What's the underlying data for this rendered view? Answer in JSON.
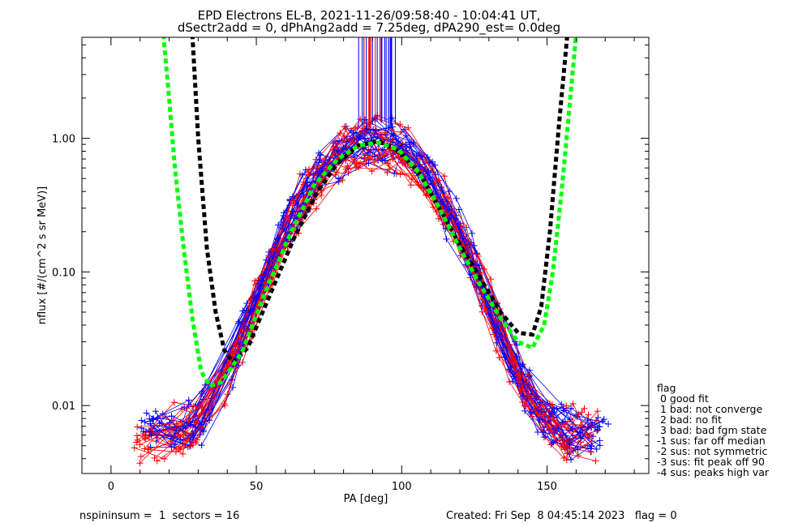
{
  "header": {
    "title_line1": "EPD Electrons EL-B, 2021-11-26/09:58:40 - 10:04:41 UT,",
    "title_line2": "dSectr2add = 0, dPhAng2add = 7.25deg, dPA290_est=   0.0deg"
  },
  "footer": {
    "left": "nspininsum =  1  sectors = 16",
    "right": "Created: Fri Sep  8 04:45:14 2023   flag = 0"
  },
  "legend": {
    "title": "flag",
    "items": [
      " 0 good fit",
      " 1 bad: not converge",
      " 2 bad: no fit",
      " 3 bad: bad fgm state",
      "-1 sus: far off median",
      "-2 sus: not symmetric",
      "-3 sus: fit peak off 90",
      "-4 sus: peaks high var"
    ]
  },
  "chart_data": {
    "type": "line",
    "xlabel": "PA [deg]",
    "ylabel": "nflux [#/(cm^2 s sr MeV)]",
    "xlim": [
      -10,
      185
    ],
    "ylim": [
      0.0031,
      5.7
    ],
    "yscale": "log",
    "x_ticks": [
      0,
      50,
      100,
      150
    ],
    "x_tick_labels": [
      "0",
      "50",
      "100",
      "150"
    ],
    "y_ticks": [
      0.01,
      0.1,
      1.0
    ],
    "y_tick_labels": [
      "0.01",
      "0.10",
      "1.00"
    ],
    "colors": {
      "red_series": "#ff0000",
      "blue_series": "#0000ff",
      "black_dashed": "#000000",
      "green_dashed": "#00ff00"
    },
    "series": [
      {
        "color": "#000000",
        "style": "dashed",
        "x": [
          28,
          30,
          33,
          36,
          39,
          42,
          47,
          55,
          63,
          71,
          78,
          85,
          92,
          99,
          106,
          113,
          120,
          127,
          134,
          140,
          145,
          148,
          151,
          154,
          157
        ],
        "y": [
          6.0,
          1.0,
          0.15,
          0.05,
          0.026,
          0.021,
          0.027,
          0.07,
          0.18,
          0.4,
          0.65,
          0.88,
          0.95,
          0.8,
          0.55,
          0.3,
          0.16,
          0.09,
          0.05,
          0.035,
          0.034,
          0.055,
          0.2,
          1.2,
          6.0
        ]
      },
      {
        "color": "#00ff00",
        "style": "dashed",
        "x": [
          18,
          20,
          22,
          25,
          28,
          31,
          34,
          38,
          45,
          53,
          62,
          70,
          78,
          85,
          92,
          99,
          106,
          113,
          120,
          127,
          134,
          140,
          145,
          149,
          152,
          155,
          158,
          160
        ],
        "y": [
          6.0,
          2.0,
          0.6,
          0.15,
          0.045,
          0.018,
          0.014,
          0.015,
          0.025,
          0.07,
          0.2,
          0.45,
          0.7,
          0.88,
          0.93,
          0.82,
          0.55,
          0.3,
          0.15,
          0.08,
          0.045,
          0.03,
          0.027,
          0.04,
          0.1,
          0.4,
          2.0,
          6.0
        ]
      }
    ],
    "scatter_overlay": "red (+) and blue (+) individual pitch-angle distributions, one polyline per spin; vertical lines near PA=90 mark fitted peak positions"
  }
}
